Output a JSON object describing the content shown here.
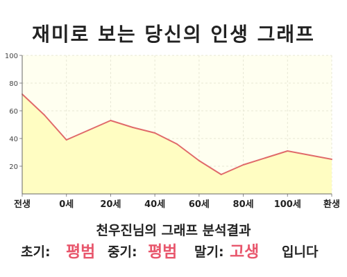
{
  "title": "재미로 보는 당신의 인생 그래프",
  "chart_data": {
    "type": "area",
    "title": "재미로 보는 당신의 인생 그래프",
    "xlabel": "",
    "ylabel": "",
    "ylim": [
      0,
      100
    ],
    "yticks": [
      20,
      40,
      60,
      80,
      100
    ],
    "xticks": [
      "전생",
      "0세",
      "20세",
      "40세",
      "60세",
      "80세",
      "100세",
      "환생"
    ],
    "grid": true,
    "x": [
      "전생",
      "",
      "0세",
      "",
      "20세",
      "",
      "40세",
      "",
      "60세",
      "",
      "80세",
      "",
      "100세",
      "",
      "환생"
    ],
    "values": [
      72,
      57,
      39,
      46,
      53,
      48,
      44,
      36,
      24,
      14,
      21,
      26,
      31,
      28,
      25
    ],
    "colors": {
      "line": "#e06a6a",
      "fill": "#fffdc2",
      "plot_bg": "#fffff0",
      "grid": "#e7e7d5"
    }
  },
  "summary": "천우진님의 그래프 분석결과",
  "result": {
    "early_label": "초기:",
    "early_value": "평범",
    "middle_label": "중기:",
    "middle_value": "평범",
    "late_label": "말기:",
    "late_value": "고생",
    "ending": "입니다"
  },
  "colors": {
    "accent": "#e8566c",
    "text": "#222222"
  }
}
